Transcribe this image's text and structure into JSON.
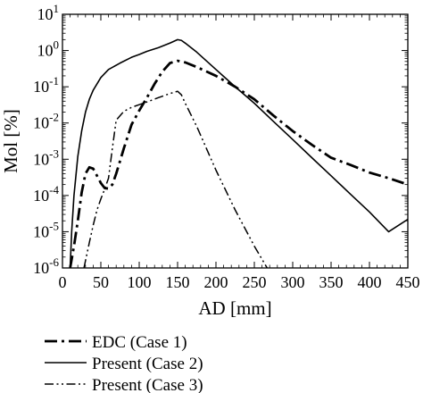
{
  "chart_data": {
    "type": "line",
    "title": "",
    "xlabel": "AD [mm]",
    "ylabel": "Mol [%]",
    "xlim": [
      0,
      450
    ],
    "ylim_log10": [
      -6,
      1
    ],
    "y_scale": "log",
    "grid": false,
    "x_ticks": [
      0,
      50,
      100,
      150,
      200,
      250,
      300,
      350,
      400,
      450
    ],
    "y_ticks": [
      {
        "base": "10",
        "exp": "1"
      },
      {
        "base": "10",
        "exp": "0"
      },
      {
        "base": "10",
        "exp": "-1"
      },
      {
        "base": "10",
        "exp": "-2"
      },
      {
        "base": "10",
        "exp": "-3"
      },
      {
        "base": "10",
        "exp": "-4"
      },
      {
        "base": "10",
        "exp": "-5"
      },
      {
        "base": "10",
        "exp": "-6"
      }
    ],
    "legend_position": "below",
    "series": [
      {
        "name": "EDC (Case 1)",
        "style": "dash-dot-thick",
        "x": [
          10,
          15,
          20,
          25,
          30,
          35,
          40,
          45,
          50,
          55,
          60,
          65,
          70,
          80,
          90,
          100,
          110,
          120,
          130,
          140,
          150,
          160,
          175,
          200,
          225,
          250,
          275,
          300,
          325,
          350,
          375,
          400,
          425,
          450
        ],
        "y": [
          1e-06,
          4e-06,
          2e-05,
          0.00012,
          0.0004,
          0.0006,
          0.00055,
          0.00035,
          0.00022,
          0.00016,
          0.000155,
          0.0002,
          0.0004,
          0.002,
          0.009,
          0.022,
          0.05,
          0.12,
          0.26,
          0.45,
          0.52,
          0.47,
          0.35,
          0.2,
          0.1,
          0.045,
          0.016,
          0.006,
          0.0025,
          0.0011,
          0.0007,
          0.00043,
          0.0003,
          0.0002
        ]
      },
      {
        "name": "Present (Case 2)",
        "style": "solid",
        "x": [
          10,
          12,
          15,
          20,
          25,
          30,
          35,
          40,
          50,
          60,
          75,
          90,
          100,
          110,
          125,
          140,
          150,
          155,
          160,
          175,
          200,
          225,
          250,
          275,
          300,
          325,
          350,
          375,
          400,
          425,
          450
        ],
        "y": [
          1e-06,
          1e-05,
          0.0001,
          0.0012,
          0.006,
          0.02,
          0.045,
          0.08,
          0.18,
          0.3,
          0.45,
          0.65,
          0.78,
          0.95,
          1.2,
          1.6,
          2.0,
          1.9,
          1.6,
          0.9,
          0.3,
          0.1,
          0.035,
          0.011,
          0.0035,
          0.0011,
          0.00035,
          0.00011,
          3.5e-05,
          1e-05,
          2.2e-05
        ]
      },
      {
        "name": "Present (Case 3)",
        "style": "dash-dot-dot",
        "x": [
          28,
          35,
          40,
          45,
          50,
          55,
          60,
          65,
          70,
          80,
          90,
          100,
          110,
          125,
          140,
          150,
          155,
          160,
          175,
          200,
          225,
          250,
          275,
          300,
          310
        ],
        "y": [
          1e-06,
          5e-06,
          1.5e-05,
          4e-05,
          8e-05,
          0.00015,
          0.0003,
          0.002,
          0.012,
          0.021,
          0.027,
          0.032,
          0.038,
          0.05,
          0.065,
          0.075,
          0.06,
          0.035,
          0.008,
          0.0005,
          4e-05,
          4e-06,
          5e-07,
          5e-08,
          1e-08
        ]
      }
    ]
  }
}
